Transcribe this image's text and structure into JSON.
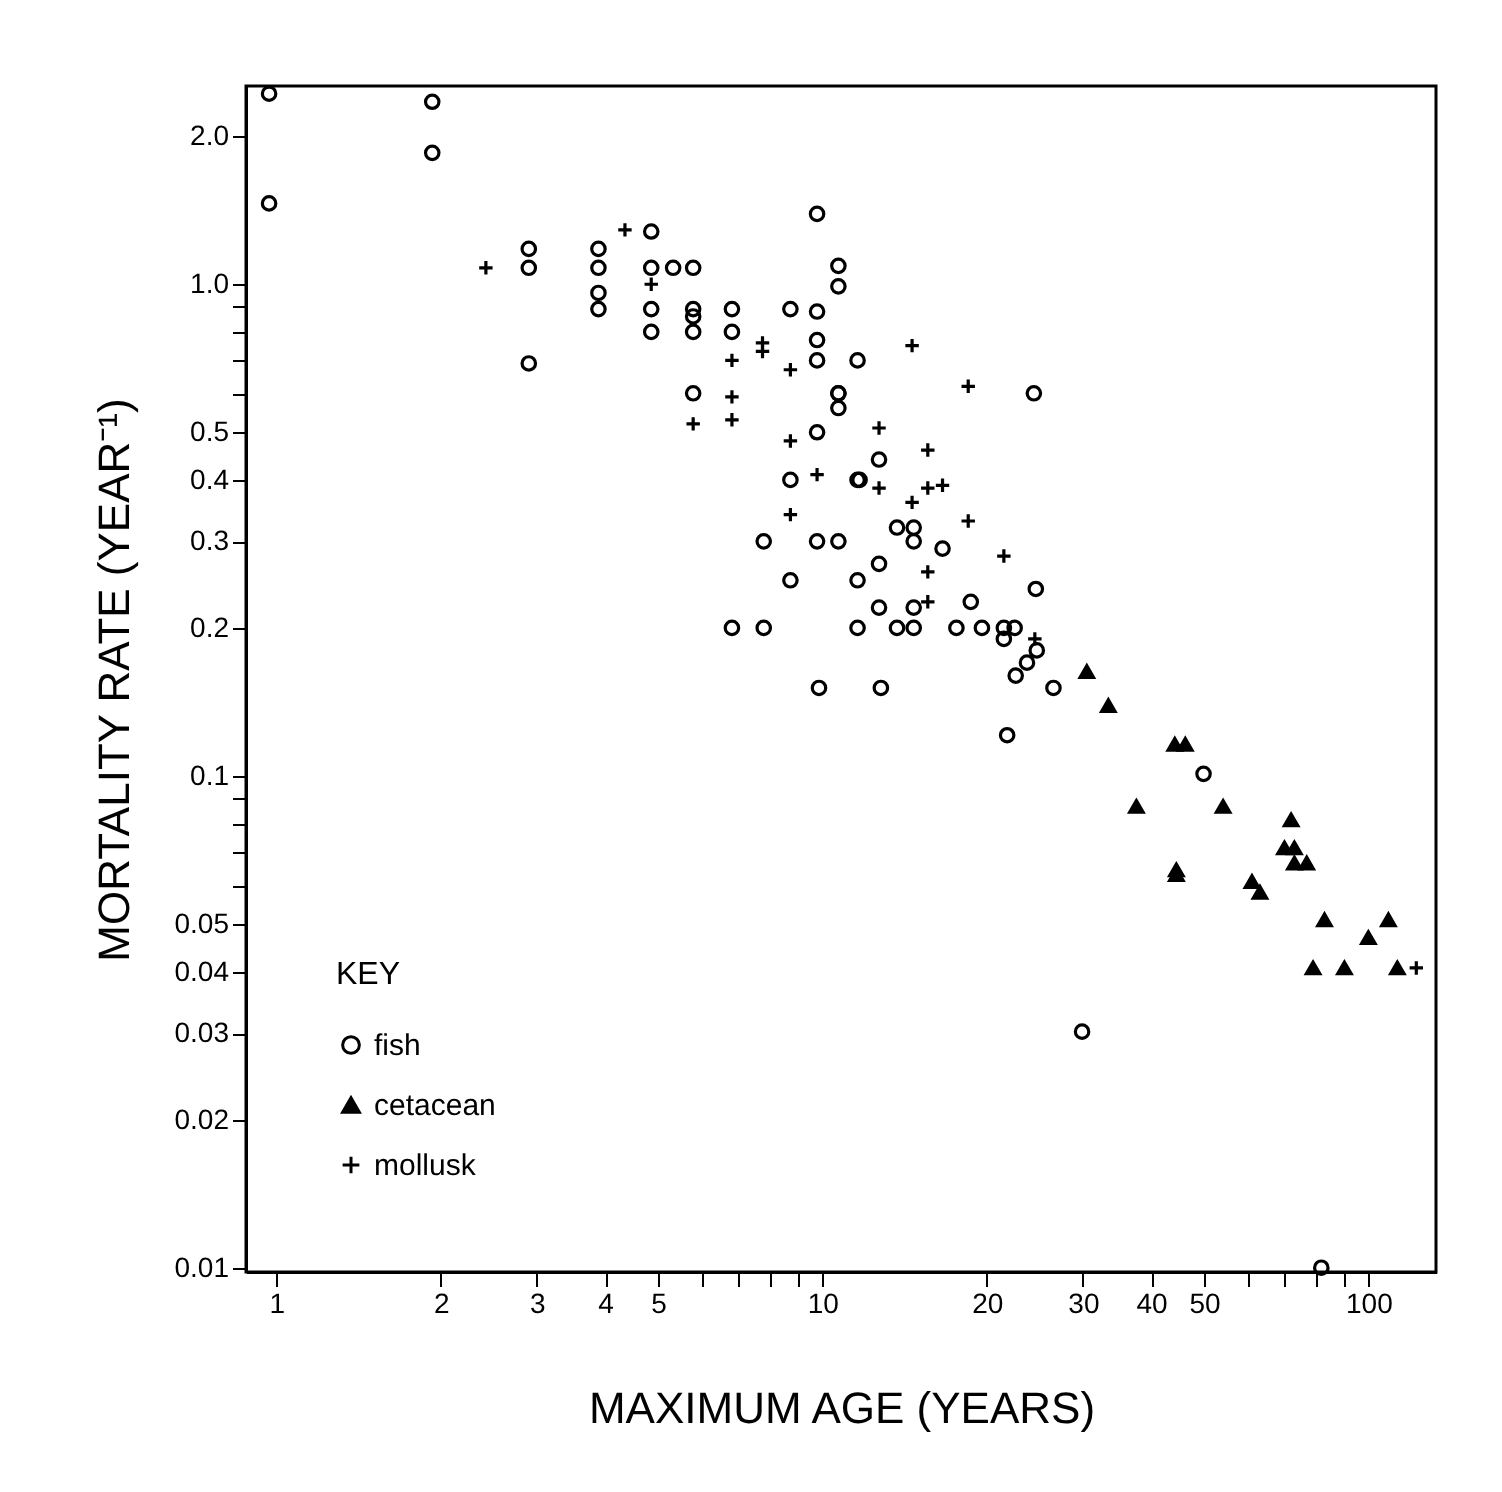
{
  "chart_data": {
    "type": "scatter",
    "xlabel": "MAXIMUM AGE (YEARS)",
    "ylabel": "MORTALITY RATE (YEAR⁻¹)",
    "legend_title": "KEY",
    "legend": "bottom left",
    "log": "xy",
    "grid": false,
    "xlim": [
      0.88,
      133
    ],
    "ylim": [
      0.0098,
      2.53
    ],
    "xticks": [
      1,
      2,
      3,
      4,
      5,
      {
        "value": 6,
        "label": null
      },
      {
        "value": 7,
        "label": null
      },
      {
        "value": 8,
        "label": null
      },
      {
        "value": 9,
        "label": null
      },
      10,
      20,
      30,
      40,
      50,
      {
        "value": 60,
        "label": null
      },
      {
        "value": 70,
        "label": null
      },
      {
        "value": 80,
        "label": null
      },
      {
        "value": 90,
        "label": null
      },
      100
    ],
    "yticks": [
      0.01,
      0.02,
      0.03,
      0.04,
      0.05,
      {
        "value": 0.06,
        "label": null
      },
      {
        "value": 0.07,
        "label": null
      },
      {
        "value": 0.08,
        "label": null
      },
      {
        "value": 0.09,
        "label": null
      },
      0.1,
      0.2,
      0.3,
      0.4,
      0.5,
      {
        "value": 0.6,
        "label": null
      },
      {
        "value": 0.7,
        "label": null
      },
      {
        "value": 0.8,
        "label": null
      },
      {
        "value": 0.9,
        "label": null
      },
      {
        "value": 1,
        "label": "1.0"
      },
      {
        "value": 2,
        "label": "2.0"
      }
    ],
    "series": [
      {
        "name": "fish",
        "color": "#000000",
        "marker": "circle",
        "x": [
          0.97,
          1.93,
          1.93,
          0.97,
          4.86,
          2.9,
          2.9,
          3.89,
          3.89,
          3.89,
          3.89,
          4.86,
          5.33,
          5.8,
          4.86,
          4.86,
          5.8,
          5.8,
          5.8,
          2.9,
          6.83,
          6.83,
          5.8,
          8.74,
          9.78,
          9.78,
          9.78,
          9.78,
          10.7,
          10.7,
          10.7,
          10.7,
          10.7,
          9.78,
          8.74,
          11.6,
          7.81,
          9.78,
          10.7,
          11.6,
          8.74,
          11.6,
          6.83,
          7.81,
          11.6,
          24.4,
          12.7,
          13.7,
          14.7,
          14.7,
          16.6,
          12.7,
          24.6,
          12.7,
          14.7,
          18.7,
          13.7,
          14.7,
          17.6,
          19.6,
          21.5,
          22.5,
          21.5,
          24.7,
          23.7,
          22.6,
          26.5,
          9.86,
          12.8,
          21.8,
          49.9,
          29.9,
          82,
          11.7
        ],
        "values": [
          2.44,
          2.35,
          1.85,
          1.46,
          1.28,
          1.18,
          1.08,
          1.18,
          1.08,
          0.96,
          0.89,
          1.08,
          1.08,
          1.08,
          0.89,
          0.8,
          0.89,
          0.86,
          0.8,
          0.69,
          0.89,
          0.8,
          0.6,
          0.89,
          0.88,
          1.39,
          0.77,
          0.7,
          0.6,
          0.56,
          1.09,
          0.99,
          0.6,
          0.5,
          0.4,
          0.7,
          0.3,
          0.3,
          0.3,
          0.4,
          0.25,
          0.25,
          0.2,
          0.2,
          0.2,
          0.6,
          0.44,
          0.32,
          0.32,
          0.3,
          0.29,
          0.27,
          0.24,
          0.22,
          0.22,
          0.226,
          0.2,
          0.2,
          0.2,
          0.2,
          0.2,
          0.2,
          0.19,
          0.18,
          0.17,
          0.16,
          0.151,
          0.151,
          0.151,
          0.121,
          0.101,
          0.0302,
          0.01,
          0.4
        ]
      },
      {
        "name": "cetacean",
        "color": "#000000",
        "marker": "triangle",
        "x": [
          30.5,
          33.4,
          44.2,
          46.2,
          37.6,
          54.2,
          72.2,
          70.2,
          73.2,
          73.2,
          77.1,
          44.5,
          44.5,
          61.2,
          63.3,
          83.1,
          108.8,
          100,
          79.2,
          90.4,
          113
        ],
        "values": [
          0.163,
          0.139,
          0.116,
          0.116,
          0.0867,
          0.0867,
          0.0814,
          0.0714,
          0.0714,
          0.0665,
          0.0665,
          0.0644,
          0.063,
          0.061,
          0.058,
          0.051,
          0.051,
          0.0469,
          0.0407,
          0.0407,
          0.0407
        ]
      },
      {
        "name": "mollusk",
        "color": "#000000",
        "marker": "cross",
        "x": [
          4.35,
          2.42,
          4.86,
          6.83,
          5.8,
          6.83,
          6.83,
          7.77,
          7.77,
          8.74,
          8.74,
          9.78,
          8.74,
          14.6,
          18.5,
          12.7,
          15.6,
          12.7,
          15.6,
          16.6,
          14.6,
          18.5,
          21.5,
          15.6,
          15.6,
          24.5,
          122.4
        ],
        "values": [
          1.29,
          1.08,
          1.0,
          0.7,
          0.52,
          0.59,
          0.53,
          0.76,
          0.73,
          0.67,
          0.48,
          0.41,
          0.34,
          0.75,
          0.62,
          0.51,
          0.46,
          0.385,
          0.385,
          0.39,
          0.36,
          0.33,
          0.28,
          0.26,
          0.226,
          0.19,
          0.0407
        ]
      }
    ]
  }
}
